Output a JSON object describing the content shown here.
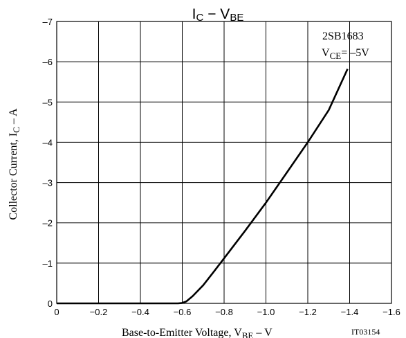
{
  "chart_data": {
    "type": "line",
    "title": {
      "main": "I",
      "sub_c": "C",
      "dash": " − V",
      "sub_be": "BE"
    },
    "xlabel": {
      "main": "Base-to-Emitter Voltage, V",
      "sub": "BE",
      "unit": "  –  V"
    },
    "ylabel": {
      "main": "Collector Current, I",
      "sub": "C",
      "unit": "  –  A"
    },
    "annotation": {
      "device": "2SB1683",
      "condition_main": "V",
      "condition_sub": "CE",
      "condition_value": "= –5V"
    },
    "code": "IT03154",
    "xlim": [
      0,
      -1.6
    ],
    "ylim": [
      0,
      -7
    ],
    "x_ticks": [
      "0",
      "−0.2",
      "−0.4",
      "−0.6",
      "−0.8",
      "−1.0",
      "−1.2",
      "−1.4",
      "−1.6"
    ],
    "y_ticks": [
      "0",
      "–1",
      "–2",
      "–3",
      "–4",
      "–5",
      "–6",
      "–7"
    ],
    "grid": true,
    "series": [
      {
        "x": [
          0,
          -0.2,
          -0.4,
          -0.58,
          -0.6,
          -0.62,
          -0.65,
          -0.7,
          -0.75,
          -0.8,
          -0.9,
          -1.0,
          -1.1,
          -1.2,
          -1.3,
          -1.39
        ],
        "y": [
          0,
          0,
          0,
          0,
          -0.01,
          -0.05,
          -0.18,
          -0.45,
          -0.78,
          -1.12,
          -1.8,
          -2.5,
          -3.25,
          -4.0,
          -4.8,
          -5.82
        ]
      }
    ]
  }
}
